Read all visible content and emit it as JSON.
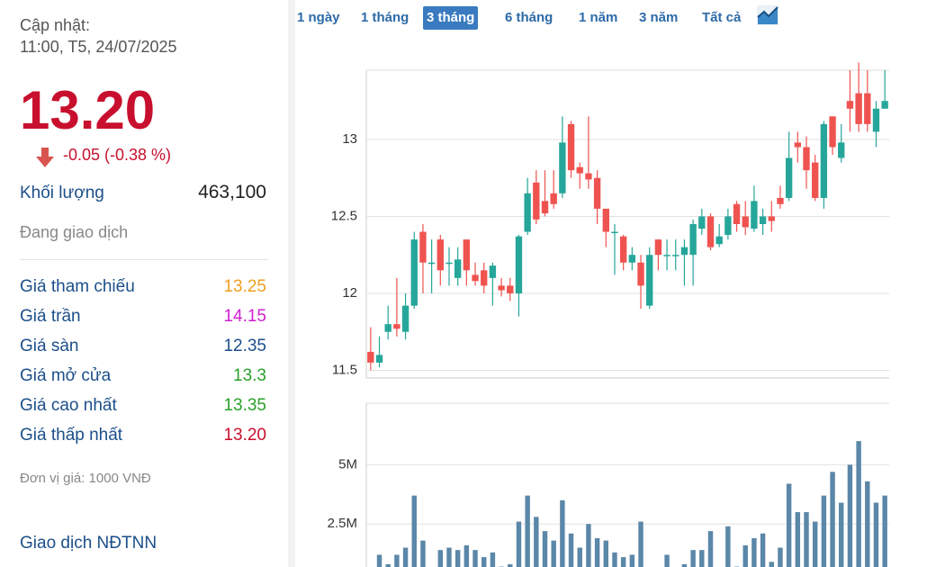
{
  "header": {
    "update_label": "Cập nhật:",
    "update_time": "11:00, T5, 24/07/2025"
  },
  "price": "13.20",
  "change": "-0.05 (-0.38 %)",
  "volume": {
    "label": "Khối lượng",
    "value": "463,100"
  },
  "status": "Đang giao dịch",
  "stats": [
    {
      "label": "Giá tham chiếu",
      "value": "13.25",
      "color": "#f0a020"
    },
    {
      "label": "Giá trần",
      "value": "14.15",
      "color": "#d020d0"
    },
    {
      "label": "Giá sàn",
      "value": "12.35",
      "color": "#1c4f8a"
    },
    {
      "label": "Giá mở cửa",
      "value": "13.3",
      "color": "#2aa02a"
    },
    {
      "label": "Giá cao nhất",
      "value": "13.35",
      "color": "#2aa02a"
    },
    {
      "label": "Giá thấp nhất",
      "value": "13.20",
      "color": "#c8102e"
    }
  ],
  "unit_note": "Đơn vị giá: 1000 VNĐ",
  "foreign_title": "Giao dịch NĐTNN",
  "tabs": [
    "1 ngày",
    "1 tháng",
    "3 tháng",
    "6 tháng",
    "1 năm",
    "3 năm",
    "Tất cả"
  ],
  "active_tab": 2,
  "chart_data": {
    "type": "candlestick",
    "up_color": "#26a69a",
    "down_color": "#ef5350",
    "ylim": [
      11.45,
      13.45
    ],
    "yticks": [
      11.5,
      12,
      12.5,
      13
    ],
    "grid": true,
    "open": [
      11.62,
      11.55,
      11.75,
      11.8,
      11.75,
      11.92,
      12.4,
      12.2,
      12.35,
      12.2,
      12.1,
      12.35,
      12.12,
      12.15,
      12.1,
      12.05,
      12.05,
      12.0,
      12.4,
      12.72,
      12.6,
      12.65,
      12.65,
      13.1,
      12.82,
      12.78,
      12.75,
      12.55,
      12.4,
      12.37,
      12.2,
      12.2,
      11.92,
      12.35,
      12.25,
      12.25,
      12.25,
      12.25,
      12.42,
      12.5,
      12.32,
      12.38,
      12.58,
      12.5,
      12.42,
      12.45,
      12.5,
      12.62,
      12.62,
      12.98,
      12.95,
      12.85,
      12.62,
      13.15,
      12.88,
      13.25,
      13.3,
      13.3,
      13.05,
      13.2
    ],
    "high": [
      11.78,
      11.72,
      11.92,
      12.1,
      12.0,
      12.4,
      12.45,
      12.35,
      12.38,
      12.3,
      12.3,
      12.35,
      12.2,
      12.2,
      12.2,
      12.1,
      12.1,
      12.38,
      12.75,
      12.8,
      12.8,
      12.8,
      13.15,
      13.12,
      12.85,
      13.15,
      12.8,
      12.55,
      12.45,
      12.38,
      12.3,
      12.25,
      12.3,
      12.35,
      12.35,
      12.35,
      12.35,
      12.48,
      12.55,
      12.52,
      12.45,
      12.55,
      12.6,
      12.6,
      12.7,
      12.55,
      12.6,
      12.7,
      13.05,
      13.05,
      13.02,
      12.9,
      13.12,
      13.15,
      13.1,
      13.45,
      13.5,
      13.45,
      13.25,
      13.45
    ],
    "low": [
      11.5,
      11.52,
      11.7,
      11.72,
      11.7,
      11.9,
      12.0,
      12.0,
      12.05,
      12.05,
      12.05,
      12.05,
      12.05,
      12.0,
      11.92,
      11.98,
      11.95,
      11.85,
      12.38,
      12.45,
      12.5,
      12.55,
      12.62,
      12.75,
      12.68,
      12.68,
      12.45,
      12.3,
      12.12,
      12.15,
      12.15,
      11.9,
      11.9,
      12.15,
      12.15,
      12.15,
      12.05,
      12.05,
      12.38,
      12.28,
      12.3,
      12.35,
      12.4,
      12.38,
      12.4,
      12.38,
      12.4,
      12.55,
      12.6,
      12.85,
      12.68,
      12.6,
      12.55,
      12.9,
      12.85,
      13.05,
      13.05,
      13.05,
      12.95,
      13.2
    ],
    "close": [
      11.55,
      11.6,
      11.8,
      11.77,
      11.92,
      12.35,
      12.2,
      12.2,
      12.15,
      12.2,
      12.22,
      12.15,
      12.08,
      12.05,
      12.18,
      12.02,
      12.0,
      12.37,
      12.65,
      12.48,
      12.52,
      12.58,
      12.98,
      12.8,
      12.78,
      12.74,
      12.55,
      12.4,
      12.4,
      12.2,
      12.25,
      12.05,
      12.25,
      12.25,
      12.25,
      12.25,
      12.3,
      12.45,
      12.5,
      12.3,
      12.37,
      12.5,
      12.45,
      12.43,
      12.6,
      12.5,
      12.47,
      12.58,
      12.88,
      12.95,
      12.8,
      12.62,
      13.1,
      12.95,
      12.98,
      13.2,
      13.1,
      13.1,
      13.2,
      13.25
    ],
    "volume": {
      "color": "#5b87a8",
      "ylim": [
        0,
        7600000
      ],
      "yticks": [
        {
          "value": 2500000,
          "label": "2.5M"
        },
        {
          "value": 5000000,
          "label": "5M"
        }
      ],
      "values": [
        300000,
        1200000,
        800000,
        1200000,
        1500000,
        3700000,
        1800000,
        600000,
        1400000,
        1500000,
        1400000,
        1600000,
        1400000,
        1100000,
        1300000,
        700000,
        800000,
        2600000,
        3700000,
        2800000,
        2200000,
        1800000,
        3500000,
        2100000,
        1500000,
        2500000,
        1900000,
        1800000,
        1300000,
        1100000,
        1200000,
        2600000,
        600000,
        400000,
        1200000,
        600000,
        800000,
        1400000,
        1400000,
        2200000,
        500000,
        2400000,
        700000,
        1600000,
        1900000,
        2100000,
        900000,
        1500000,
        4200000,
        3000000,
        3000000,
        2600000,
        3700000,
        4700000,
        3400000,
        5000000,
        6000000,
        4300000,
        3400000,
        3700000
      ]
    }
  }
}
